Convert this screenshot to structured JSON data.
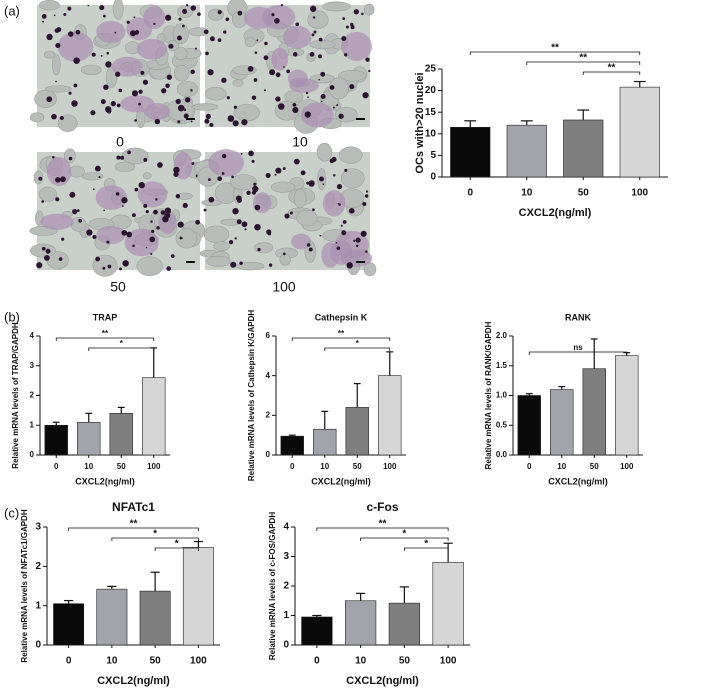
{
  "panel_labels": [
    "(a)",
    "(b)",
    "(c)"
  ],
  "micrographs": {
    "labels": [
      "0",
      "10",
      "50",
      "100"
    ]
  },
  "chart_data": [
    {
      "type": "bar",
      "categories": [
        "0",
        "10",
        "50",
        "100"
      ],
      "values": [
        11.5,
        12,
        13.2,
        20.8
      ],
      "errors": [
        1.5,
        1,
        2.3,
        1.3
      ],
      "colors": [
        "#0a0a0a",
        "#a3a3ab",
        "#7f7f7f",
        "#d6d6d6"
      ],
      "ylim": [
        0,
        25
      ],
      "yticks": [
        0,
        5,
        10,
        15,
        20,
        25
      ],
      "ylabel": "OCs with>20 nuclei",
      "xlabel": "CXCL2(ng/ml)",
      "significance": [
        {
          "from": "0",
          "to": "100",
          "label": "**"
        },
        {
          "from": "10",
          "to": "100",
          "label": "**"
        },
        {
          "from": "50",
          "to": "100",
          "label": "**"
        }
      ]
    },
    {
      "type": "bar",
      "title": "TRAP",
      "categories": [
        "0",
        "10",
        "50",
        "100"
      ],
      "values": [
        1.0,
        1.1,
        1.4,
        2.6
      ],
      "errors": [
        0.1,
        0.3,
        0.2,
        1.0
      ],
      "colors": [
        "#0a0a0a",
        "#a3a3ab",
        "#7f7f7f",
        "#d6d6d6"
      ],
      "ylim": [
        0,
        4
      ],
      "yticks": [
        0,
        1,
        2,
        3,
        4
      ],
      "ylabel": "Relative mRNA levels of TRAP/GAPDH",
      "xlabel": "CXCL2(ng/ml)",
      "significance": [
        {
          "from": "0",
          "to": "100",
          "label": "**"
        },
        {
          "from": "10",
          "to": "100",
          "label": "*"
        }
      ]
    },
    {
      "type": "bar",
      "title": "Cathepsin K",
      "categories": [
        "0",
        "10",
        "50",
        "100"
      ],
      "values": [
        0.95,
        1.3,
        2.4,
        4.0
      ],
      "errors": [
        0.05,
        0.9,
        1.2,
        1.2
      ],
      "colors": [
        "#0a0a0a",
        "#a3a3ab",
        "#7f7f7f",
        "#d6d6d6"
      ],
      "ylim": [
        0,
        6
      ],
      "yticks": [
        0,
        2,
        4,
        6
      ],
      "ylabel": "Relative mRNA levels of Cathepsin K/GAPDH",
      "xlabel": "CXCL2(ng/ml)",
      "significance": [
        {
          "from": "0",
          "to": "100",
          "label": "**"
        },
        {
          "from": "10",
          "to": "100",
          "label": "*"
        }
      ]
    },
    {
      "type": "bar",
      "title": "RANK",
      "categories": [
        "0",
        "10",
        "50",
        "100"
      ],
      "values": [
        1.0,
        1.1,
        1.45,
        1.67
      ],
      "errors": [
        0.03,
        0.05,
        0.5,
        0.05
      ],
      "colors": [
        "#0a0a0a",
        "#a3a3ab",
        "#7f7f7f",
        "#d6d6d6"
      ],
      "ylim": [
        0,
        2
      ],
      "yticks": [
        {
          "value": 0,
          "label": "0.0"
        },
        {
          "value": 0.5,
          "label": "0.5"
        },
        {
          "value": 1,
          "label": "1.0"
        },
        {
          "value": 1.5,
          "label": "1.5"
        },
        {
          "value": 2,
          "label": "2.0"
        }
      ],
      "ylabel": "Relative mRNA levels of RANK/GAPDH",
      "xlabel": "CXCL2(ng/ml)",
      "significance": [
        {
          "from": "0",
          "to": "100",
          "label": "ns"
        }
      ]
    },
    {
      "type": "bar",
      "title": "NFATc1",
      "categories": [
        "0",
        "10",
        "50",
        "100"
      ],
      "values": [
        1.05,
        1.42,
        1.37,
        2.48
      ],
      "errors": [
        0.08,
        0.07,
        0.48,
        0.15
      ],
      "colors": [
        "#0a0a0a",
        "#a3a3ab",
        "#7f7f7f",
        "#d6d6d6"
      ],
      "ylim": [
        0,
        3
      ],
      "yticks": [
        0,
        1,
        2,
        3
      ],
      "ylabel": "Relative mRNA levels of NFATc1/GAPDH",
      "xlabel": "CXCL2(ng/ml)",
      "significance": [
        {
          "from": "0",
          "to": "100",
          "label": "**"
        },
        {
          "from": "10",
          "to": "100",
          "label": "*"
        },
        {
          "from": "50",
          "to": "100",
          "label": "*"
        }
      ]
    },
    {
      "type": "bar",
      "title": "c-Fos",
      "categories": [
        "0",
        "10",
        "50",
        "100"
      ],
      "values": [
        0.95,
        1.5,
        1.42,
        2.8
      ],
      "errors": [
        0.05,
        0.25,
        0.55,
        0.65
      ],
      "colors": [
        "#0a0a0a",
        "#a3a3ab",
        "#7f7f7f",
        "#d6d6d6"
      ],
      "ylim": [
        0,
        4
      ],
      "yticks": [
        0,
        1,
        2,
        3,
        4
      ],
      "ylabel": "Relative mRNA levels of c-FOS/GAPDH",
      "xlabel": "CXCL2(ng/ml)",
      "significance": [
        {
          "from": "0",
          "to": "100",
          "label": "**"
        },
        {
          "from": "10",
          "to": "100",
          "label": "*"
        },
        {
          "from": "50",
          "to": "100",
          "label": "*"
        }
      ]
    }
  ]
}
